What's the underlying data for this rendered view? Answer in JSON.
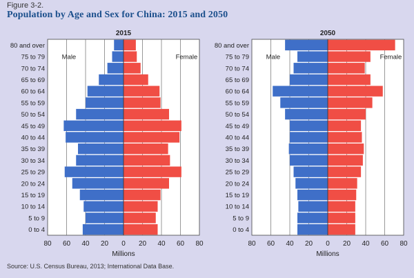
{
  "figure": {
    "label": "Figure 3-2.",
    "title": "Population by Age and Sex for China: 2015 and 2050",
    "source": "Source: U.S. Census Bureau, 2013; International Data Base."
  },
  "colors": {
    "male": "#3f6fc8",
    "female": "#f04e45",
    "panel": "#ffffff",
    "grid": "#555555",
    "text": "#222222"
  },
  "chart_data": [
    {
      "type": "bar",
      "title": "2015",
      "xlabel": "Millions",
      "male_label": "Male",
      "female_label": "Female",
      "xlim": [
        -80,
        80
      ],
      "x_ticks": [
        "80",
        "60",
        "40",
        "20",
        "0",
        "20",
        "40",
        "60",
        "80"
      ],
      "categories": [
        "80 and over",
        "75 to 79",
        "70 to 74",
        "65 to 69",
        "60 to 64",
        "55 to 59",
        "50 to 54",
        "45 to 49",
        "40 to 44",
        "35 to 39",
        "30 to 34",
        "25 to 29",
        "20 to 24",
        "15 to 19",
        "10 to 14",
        "5 to 9",
        "0 to 4"
      ],
      "series": [
        {
          "name": "Male",
          "values": [
            10,
            12,
            17,
            26,
            38,
            40,
            50,
            63,
            61,
            48,
            50,
            62,
            54,
            46,
            42,
            40,
            43
          ]
        },
        {
          "name": "Female",
          "values": [
            13,
            14,
            18,
            26,
            38,
            39,
            48,
            61,
            59,
            47,
            49,
            61,
            48,
            39,
            36,
            34,
            36
          ]
        }
      ]
    },
    {
      "type": "bar",
      "title": "2050",
      "xlabel": "Millions",
      "male_label": "Male",
      "female_label": "Female",
      "xlim": [
        -80,
        80
      ],
      "x_ticks": [
        "80",
        "60",
        "40",
        "20",
        "0",
        "20",
        "40",
        "60",
        "80"
      ],
      "categories": [
        "80 and over",
        "75 to 79",
        "70 to 74",
        "65 to 69",
        "60 to 64",
        "55 to 59",
        "50 to 54",
        "45 to 49",
        "40 to 44",
        "35 to 39",
        "30 to 34",
        "25 to 29",
        "20 to 24",
        "15 to 19",
        "10 to 14",
        "5 to 9",
        "0 to 4"
      ],
      "series": [
        {
          "name": "Male",
          "values": [
            45,
            32,
            36,
            40,
            58,
            50,
            45,
            40,
            40,
            41,
            40,
            36,
            34,
            32,
            31,
            32,
            32
          ]
        },
        {
          "name": "Female",
          "values": [
            71,
            45,
            39,
            45,
            58,
            47,
            40,
            35,
            36,
            38,
            37,
            35,
            31,
            30,
            29,
            29,
            29
          ]
        }
      ]
    }
  ]
}
